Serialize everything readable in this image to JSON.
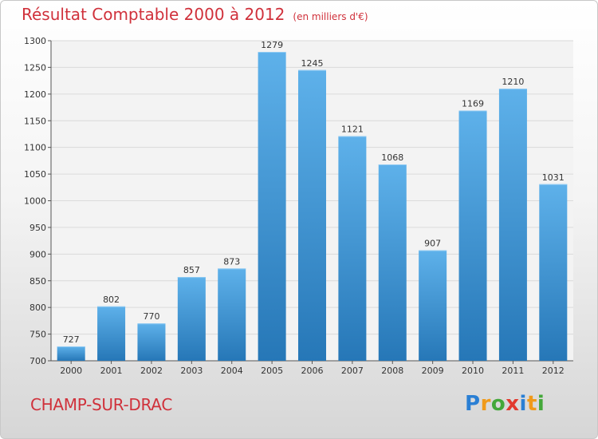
{
  "header": {
    "title": "Résultat Comptable 2000 à 2012",
    "subtitle": "(en milliers d'€)"
  },
  "footer": {
    "location": "CHAMP-SUR-DRAC",
    "logo_text": "Proxiti"
  },
  "colors": {
    "title": "#d0313b",
    "bar_light": "#5eb1ea",
    "bar_dark": "#2677b7",
    "grid": "#dadada",
    "axis": "#555555"
  },
  "chart_data": {
    "type": "bar",
    "categories": [
      "2000",
      "2001",
      "2002",
      "2003",
      "2004",
      "2005",
      "2006",
      "2007",
      "2008",
      "2009",
      "2010",
      "2011",
      "2012"
    ],
    "values": [
      727,
      802,
      770,
      857,
      873,
      1279,
      1245,
      1121,
      1068,
      907,
      1169,
      1210,
      1031
    ],
    "title": "Résultat Comptable 2000 à 2012",
    "ylabel": "",
    "xlabel": "",
    "ylim": [
      700,
      1300
    ],
    "yticks": [
      700,
      750,
      800,
      850,
      900,
      950,
      1000,
      1050,
      1100,
      1150,
      1200,
      1250,
      1300
    ],
    "grid": true,
    "data_labels": true
  }
}
